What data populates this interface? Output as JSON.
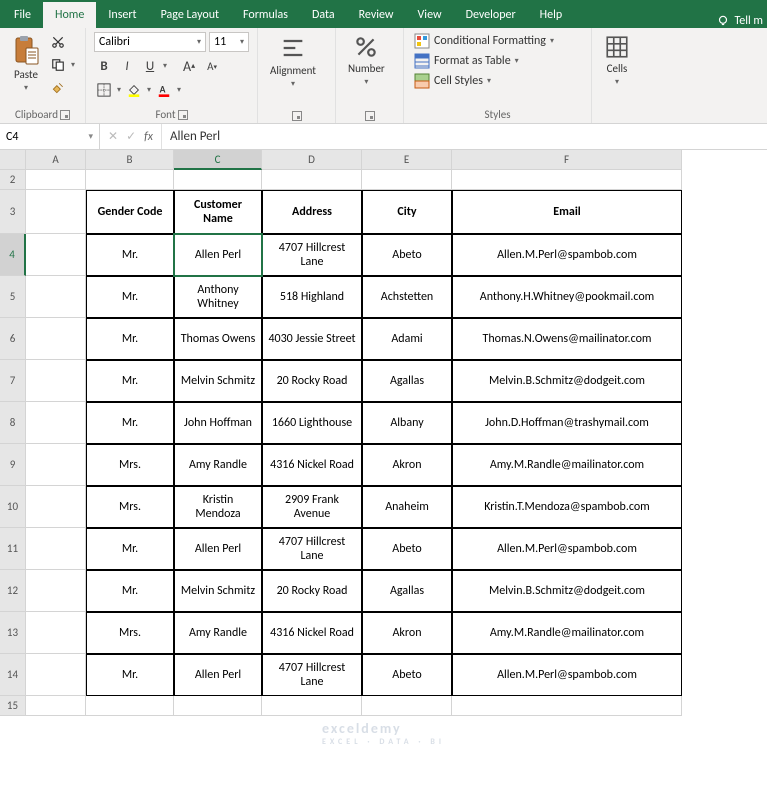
{
  "colors": {
    "brand": "#217346",
    "ribbon_bg": "#f3f2f1",
    "border": "#d4d4d4"
  },
  "tabs": {
    "items": [
      "File",
      "Home",
      "Insert",
      "Page Layout",
      "Formulas",
      "Data",
      "Review",
      "View",
      "Developer",
      "Help"
    ],
    "active": "Home",
    "tell_me": "Tell m"
  },
  "ribbon": {
    "clipboard": {
      "label": "Clipboard",
      "paste": "Paste"
    },
    "font": {
      "label": "Font",
      "name": "Calibri",
      "size": "11",
      "bold": "B",
      "italic": "I",
      "underline": "U"
    },
    "alignment": {
      "label": "Alignment"
    },
    "number": {
      "label": "Number"
    },
    "styles": {
      "label": "Styles",
      "conditional": "Conditional Formatting",
      "table": "Format as Table",
      "cell": "Cell Styles"
    },
    "cells": {
      "label": "Cells"
    }
  },
  "namebox": "C4",
  "formula": "Allen Perl",
  "columns": [
    "A",
    "B",
    "C",
    "D",
    "E",
    "F"
  ],
  "row_numbers": [
    "2",
    "3",
    "4",
    "5",
    "6",
    "7",
    "8",
    "9",
    "10",
    "11",
    "12",
    "13",
    "14",
    "15"
  ],
  "headers": [
    "Gender Code",
    "Customer Name",
    "Address",
    "City",
    "Email"
  ],
  "data_rows": [
    [
      "Mr.",
      "Allen Perl",
      "4707 Hillcrest Lane",
      "Abeto",
      "Allen.M.Perl@spambob.com"
    ],
    [
      "Mr.",
      "Anthony Whitney",
      "518 Highland",
      "Achstetten",
      "Anthony.H.Whitney@pookmail.com"
    ],
    [
      "Mr.",
      "Thomas Owens",
      "4030 Jessie Street",
      "Adami",
      "Thomas.N.Owens@mailinator.com"
    ],
    [
      "Mr.",
      "Melvin Schmitz",
      "20 Rocky Road",
      "Agallas",
      "Melvin.B.Schmitz@dodgeit.com"
    ],
    [
      "Mr.",
      "John Hoffman",
      "1660 Lighthouse",
      "Albany",
      "John.D.Hoffman@trashymail.com"
    ],
    [
      "Mrs.",
      "Amy Randle",
      "4316 Nickel Road",
      "Akron",
      "Amy.M.Randle@mailinator.com"
    ],
    [
      "Mrs.",
      "Kristin Mendoza",
      "2909 Frank Avenue",
      "Anaheim",
      "Kristin.T.Mendoza@spambob.com"
    ],
    [
      "Mr.",
      "Allen Perl",
      "4707 Hillcrest Lane",
      "Abeto",
      "Allen.M.Perl@spambob.com"
    ],
    [
      "Mr.",
      "Melvin Schmitz",
      "20 Rocky Road",
      "Agallas",
      "Melvin.B.Schmitz@dodgeit.com"
    ],
    [
      "Mrs.",
      "Amy Randle",
      "4316 Nickel Road",
      "Akron",
      "Amy.M.Randle@mailinator.com"
    ],
    [
      "Mr.",
      "Allen Perl",
      "4707 Hillcrest Lane",
      "Abeto",
      "Allen.M.Perl@spambob.com"
    ]
  ],
  "selected": {
    "row": 4,
    "col": "C"
  },
  "watermark": {
    "main": "exceldemy",
    "sub": "EXCEL · DATA · BI"
  }
}
